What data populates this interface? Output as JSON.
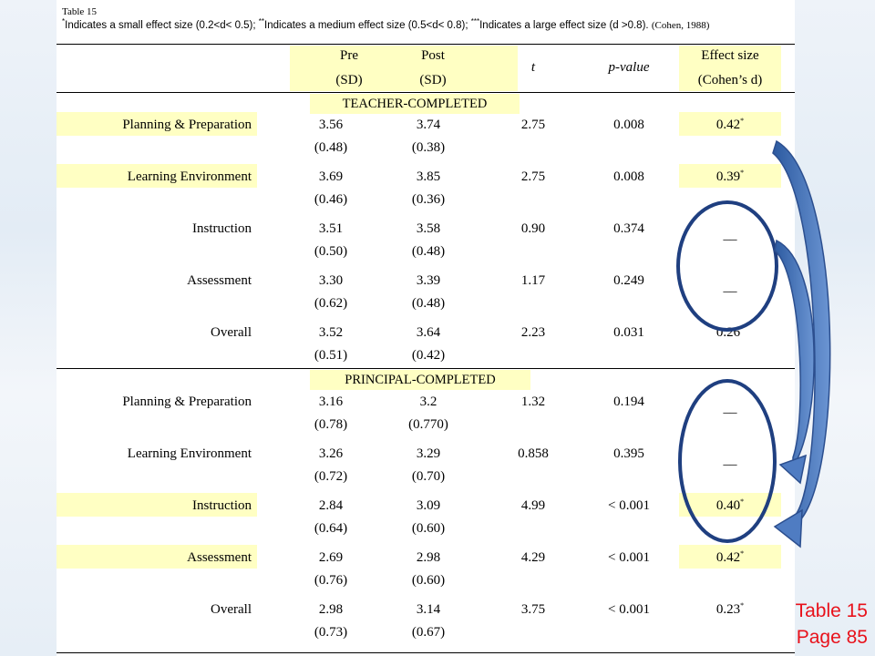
{
  "caption": {
    "table_label": "Table 15",
    "note_small": "Indicates a small effect size (0.2<d< 0.5);",
    "note_medium": "Indicates a medium effect size (0.5<d< 0.8);",
    "note_large": "Indicates a large effect size (d >0.8).",
    "citation": "(Cohen, 1988)",
    "mark_small": "*",
    "mark_medium": "**",
    "mark_large": "***"
  },
  "columns": {
    "pre": "Pre",
    "post": "Post",
    "sd_pre": "(SD)",
    "sd_post": "(SD)",
    "t": "t",
    "p": "p-value",
    "effect": "Effect size",
    "effect_sub": "(Cohen’s d)"
  },
  "sections": [
    {
      "title": "TEACHER-COMPLETED",
      "rows": [
        {
          "label": "Planning & Preparation",
          "pre": "3.56",
          "pre_sd": "(0.48)",
          "post": "3.74",
          "post_sd": "(0.38)",
          "t": "2.75",
          "p": "0.008",
          "d": "0.42",
          "star": "*",
          "highlight": true
        },
        {
          "label": "Learning Environment",
          "pre": "3.69",
          "pre_sd": "(0.46)",
          "post": "3.85",
          "post_sd": "(0.36)",
          "t": "2.75",
          "p": "0.008",
          "d": "0.39",
          "star": "*",
          "highlight": true
        },
        {
          "label": "Instruction",
          "pre": "3.51",
          "pre_sd": "(0.50)",
          "post": "3.58",
          "post_sd": "(0.48)",
          "t": "0.90",
          "p": "0.374",
          "d": "__",
          "star": "",
          "highlight": false
        },
        {
          "label": "Assessment",
          "pre": "3.30",
          "pre_sd": "(0.62)",
          "post": "3.39",
          "post_sd": "(0.48)",
          "t": "1.17",
          "p": "0.249",
          "d": "__",
          "star": "",
          "highlight": false
        },
        {
          "label": "Overall",
          "pre": "3.52",
          "pre_sd": "(0.51)",
          "post": "3.64",
          "post_sd": "(0.42)",
          "t": "2.23",
          "p": "0.031",
          "d": "0.26",
          "star": "*",
          "highlight": false
        }
      ]
    },
    {
      "title": "PRINCIPAL-COMPLETED",
      "rows": [
        {
          "label": "Planning & Preparation",
          "pre": "3.16",
          "pre_sd": "(0.78)",
          "post": "3.2",
          "post_sd": "(0.770)",
          "t": "1.32",
          "p": "0.194",
          "d": "__",
          "star": "",
          "highlight": false
        },
        {
          "label": "Learning Environment",
          "pre": "3.26",
          "pre_sd": "(0.72)",
          "post": "3.29",
          "post_sd": "(0.70)",
          "t": "0.858",
          "p": "0.395",
          "d": "__",
          "star": "",
          "highlight": false
        },
        {
          "label": "Instruction",
          "pre": "2.84",
          "pre_sd": "(0.64)",
          "post": "3.09",
          "post_sd": "(0.60)",
          "t": "4.99",
          "p": "< 0.001",
          "d": "0.40",
          "star": "*",
          "highlight": true
        },
        {
          "label": "Assessment",
          "pre": "2.69",
          "pre_sd": "(0.76)",
          "post": "2.98",
          "post_sd": "(0.60)",
          "t": "4.29",
          "p": "< 0.001",
          "d": "0.42",
          "star": "*",
          "highlight": true
        },
        {
          "label": "Overall",
          "pre": "2.98",
          "pre_sd": "(0.73)",
          "post": "3.14",
          "post_sd": "(0.67)",
          "t": "3.75",
          "p": "< 0.001",
          "d": "0.23",
          "star": "*",
          "highlight": false
        }
      ]
    }
  ],
  "page_note": {
    "line1": "Table 15",
    "line2": "Page 85"
  },
  "colors": {
    "highlight": "#ffffc3",
    "annotation_blue": "#3f6fb6",
    "page_note": "#e8121b"
  },
  "annotation_icons": [
    "circle-icon",
    "curved-arrow-icon"
  ]
}
